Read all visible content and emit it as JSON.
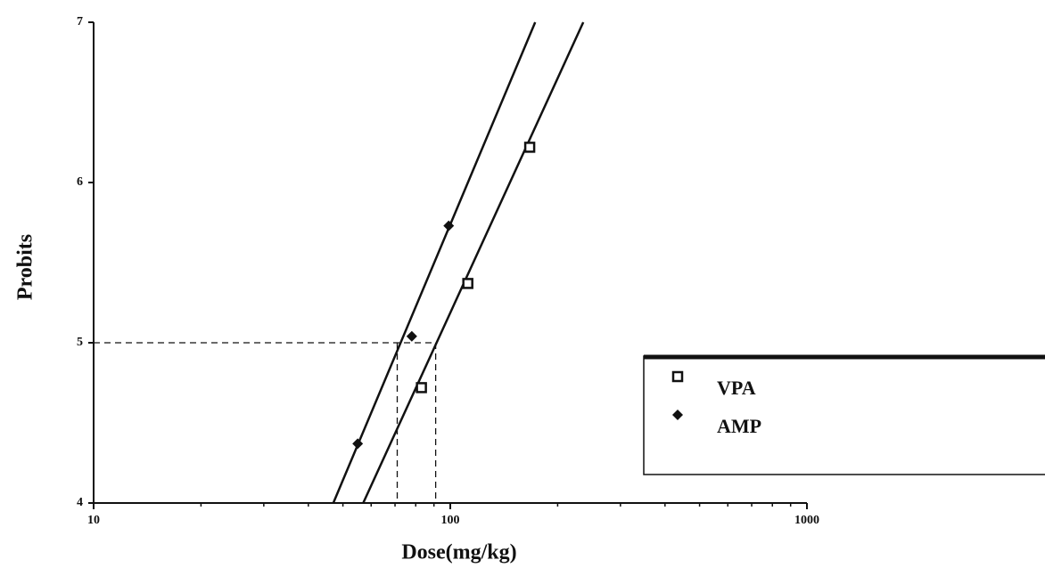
{
  "chart_data": {
    "type": "scatter",
    "xlabel": "Dose(mg/kg)",
    "ylabel": "Probits",
    "xscale": "log",
    "xlim": [
      10,
      1000
    ],
    "ylim": [
      4,
      7
    ],
    "xticks": [
      10,
      100,
      1000
    ],
    "xminor": [
      20,
      30,
      40,
      50,
      60,
      70,
      80,
      90,
      200,
      300,
      400,
      500,
      600,
      700,
      800,
      900
    ],
    "yticks": [
      4,
      5,
      6,
      7
    ],
    "reference_y": 5,
    "reference_x": [
      71,
      91
    ],
    "legend": "right",
    "series": [
      {
        "name": "VPA",
        "marker": "square",
        "color": "#111111",
        "x": [
          83,
          112,
          167
        ],
        "values": [
          4.72,
          5.37,
          6.22
        ],
        "fit_x": [
          57,
          236
        ],
        "fit_y": [
          4,
          7
        ]
      },
      {
        "name": "AMP",
        "marker": "diamond",
        "color": "#111111",
        "x": [
          55,
          78,
          99
        ],
        "values": [
          4.37,
          5.04,
          5.73
        ],
        "fit_x": [
          47,
          173
        ],
        "fit_y": [
          4,
          7
        ]
      }
    ]
  }
}
